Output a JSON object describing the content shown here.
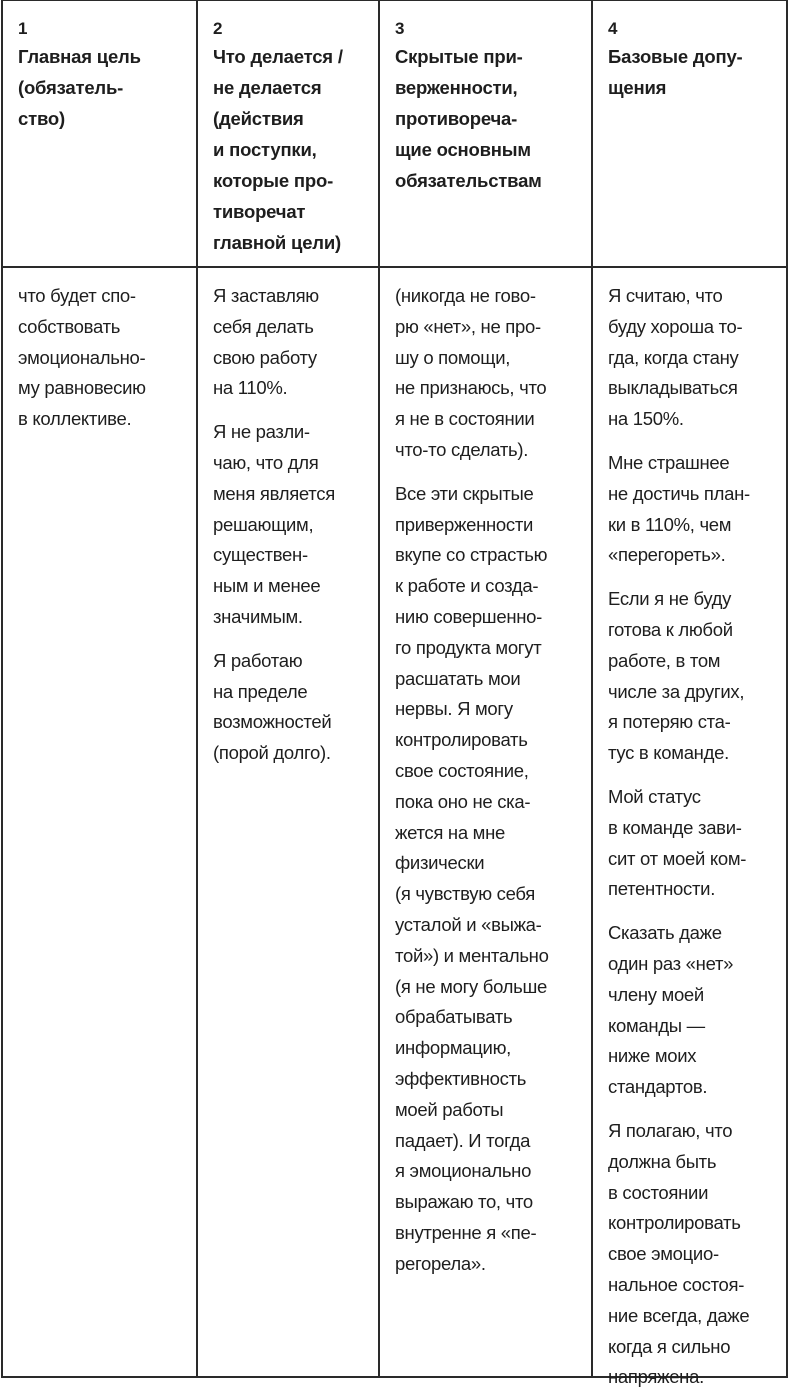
{
  "headers": [
    {
      "number": "1",
      "title": "Главная цель\n(обязатель-\nство)"
    },
    {
      "number": "2",
      "title": "Что делается /\nне делается\n(действия\nи поступки,\nкоторые про-\nтиворечат\nглавной цели)"
    },
    {
      "number": "3",
      "title": "Скрытые при-\nверженности,\nпротивореча-\nщие основным\nобязательствам"
    },
    {
      "number": "4",
      "title": "Базовые допу-\nщения"
    }
  ],
  "columns": [
    {
      "paragraphs": [
        "что будет спо-\nсобствовать\nэмоционально-\nму равновесию\nв коллективе."
      ]
    },
    {
      "paragraphs": [
        "Я заставляю\nсебя делать\nсвою работу\nна 110%.",
        "Я не разли-\nчаю, что для\nменя является\nрешающим,\nсуществен-\nным и менее\nзначимым.",
        "Я работаю\nна пределе\nвозможностей\n(порой долго)."
      ]
    },
    {
      "paragraphs": [
        "(никогда не гово-\nрю «нет», не про-\nшу о помощи,\nне признаюсь, что\nя не в состоянии\nчто-то сделать).",
        "Все эти скрытые\nприверженности\nвкупе со страстью\nк работе и созда-\nнию совершенно-\nго продукта могут\nрасшатать мои\nнервы. Я могу\nконтролировать\nсвое состояние,\nпока оно не ска-\nжется на мне\nфизически\n(я чувствую себя\nусталой и «выжа-\nтой») и ментально\n(я не могу больше\nобрабатывать\nинформацию,\nэффективность\nмоей работы\nпадает). И тогда\nя эмоционально\nвыражаю то, что\nвнутренне я «пе-\nрегорела»."
      ]
    },
    {
      "paragraphs": [
        "Я считаю, что\nбуду хороша то-\nгда, когда стану\nвыкладываться\nна 150%.",
        "Мне страшнее\nне достичь план-\nки в 110%, чем\n«перегореть».",
        "Если я не буду\nготова к любой\nработе, в том\nчисле за других,\nя потеряю ста-\nтус в команде.",
        "Мой статус\nв команде зави-\nсит от моей ком-\nпетентности.",
        "Сказать даже\nодин раз «нет»\nчлену моей\nкоманды —\nниже моих\nстандартов.",
        "Я полагаю, что\nдолжна быть\nв состоянии\nконтролировать\nсвое эмоцио-\nнальное состоя-\nние всегда, даже\nкогда я сильно\nнапряжена."
      ]
    }
  ]
}
